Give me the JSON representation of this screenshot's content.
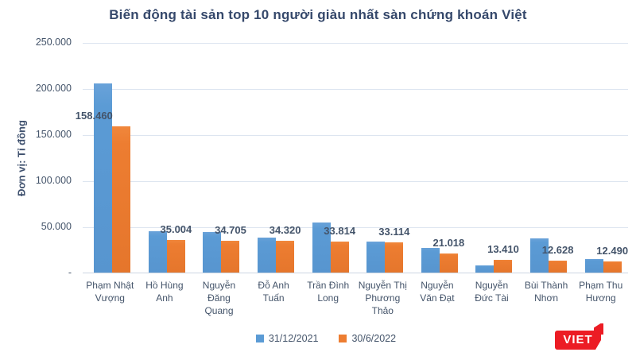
{
  "header": {
    "title": "Biến động tài sản top 10 người giàu nhất sàn chứng khoán Việt"
  },
  "y_axis": {
    "title": "Đơn vị: Tỉ đồng",
    "tick_labels": [
      "250.000",
      "200.000",
      "150.000",
      "100.000",
      "50.000",
      "-"
    ]
  },
  "legend": {
    "position": "bottom-center",
    "items": [
      {
        "label": "31/12/2021",
        "color": "#5B9BD5"
      },
      {
        "label": "30/6/2022",
        "color": "#ED7D31"
      }
    ]
  },
  "logo": {
    "text": "VIET",
    "background": "#EC1C24"
  },
  "colors": {
    "series_blue": "#5B9BD5",
    "series_orange": "#ED7D31",
    "text": "#44546A",
    "title_text": "#35486B",
    "gridline": "#DDE5F0",
    "logo_red": "#EC1C24"
  },
  "chart_data": {
    "type": "bar",
    "title": "Biến động tài sản top 10 người giàu nhất sàn chứng khoán Việt",
    "categories": [
      "Phạm Nhật Vượng",
      "Hồ Hùng Anh",
      "Nguyễn Đăng Quang",
      "Đỗ Anh Tuấn",
      "Trần Đình Long",
      "Nguyễn Thị Phương Thảo",
      "Nguyễn Văn Đạt",
      "Nguyễn Đức Tài",
      "Bùi Thành Nhơn",
      "Phạm Thu Hương"
    ],
    "series": [
      {
        "name": "31/12/2021",
        "color": "#5B9BD5",
        "values": [
          205000,
          45000,
          44000,
          37500,
          54000,
          34000,
          27000,
          8000,
          37000,
          15000
        ],
        "values_note": "estimated from bar heights against gridlines (no data labels shown for this series)"
      },
      {
        "name": "30/6/2022",
        "color": "#ED7D31",
        "values": [
          158460,
          35004,
          34705,
          34320,
          33814,
          33114,
          21018,
          13410,
          12628,
          12490
        ],
        "data_labels": [
          "158.460",
          "35.004",
          "34.705",
          "34.320",
          "33.814",
          "33.114",
          "21.018",
          "13.410",
          "12.628",
          "12.490"
        ]
      }
    ],
    "ylabel": "Đơn vị: Tỉ đồng",
    "ylim": [
      0,
      250000
    ],
    "y_tick_step": 50000,
    "grid": true,
    "legend_position": "bottom"
  }
}
